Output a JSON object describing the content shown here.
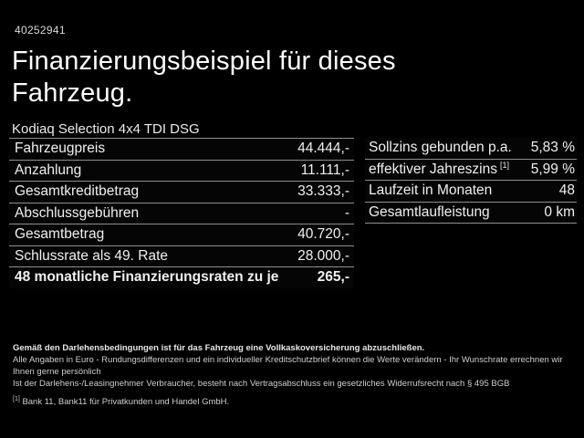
{
  "header": {
    "reference_number": "40252941",
    "title_line1": "Finanzierungsbeispiel für dieses",
    "title_line2": "Fahrzeug.",
    "vehicle_model": "Kodiaq Selection 4x4 TDI DSG"
  },
  "left_table": {
    "rows": [
      {
        "label": "Fahrzeugpreis",
        "value": "44.444,-"
      },
      {
        "label": "Anzahlung",
        "value": "11.111,-"
      },
      {
        "label": "Gesamtkreditbetrag",
        "value": "33.333,-"
      },
      {
        "label": "Abschlussgebühren",
        "value": "-"
      },
      {
        "label": "Gesamtbetrag",
        "value": "40.720,-"
      },
      {
        "label": "Schlussrate als 49. Rate",
        "value": "28.000,-"
      },
      {
        "label": "48 monatliche Finanzierungsraten zu je",
        "value": "265,-"
      }
    ]
  },
  "right_table": {
    "rows": [
      {
        "label": "Sollzins gebunden p.a.",
        "sup": "",
        "value": "5,83 %"
      },
      {
        "label": "effektiver Jahreszins",
        "sup": "[1]",
        "value": "5,99 %"
      },
      {
        "label": "Laufzeit in Monaten",
        "sup": "",
        "value": "48"
      },
      {
        "label": "Gesamtlaufleistung",
        "sup": "",
        "value": "0 km"
      }
    ]
  },
  "fine_print": {
    "bold_line": "Gemäß den Darlehensbedingungen ist für das Fahrzeug eine Vollkaskoversicherung abzuschließen.",
    "line2": "Alle Angaben in Euro - Rundungsdifferenzen und ein individueller Kreditschutzbrief können die Werte verändern - Ihr Wunschrate errechnen wir Ihnen gerne persönlich",
    "line3": "Ist der Darlehens-/Leasingnehmer Verbraucher, besteht nach Vertragsabschluss ein gesetzliches Widerrufsrecht nach § 495 BGB",
    "footnote_marker": "[1]",
    "footnote_text": "Bank 11, Bank11 für Privatkunden und Handel GmbH."
  },
  "colors": {
    "background": "#000000",
    "text": "#f0f0f0",
    "separator": "#8f8f8f"
  }
}
